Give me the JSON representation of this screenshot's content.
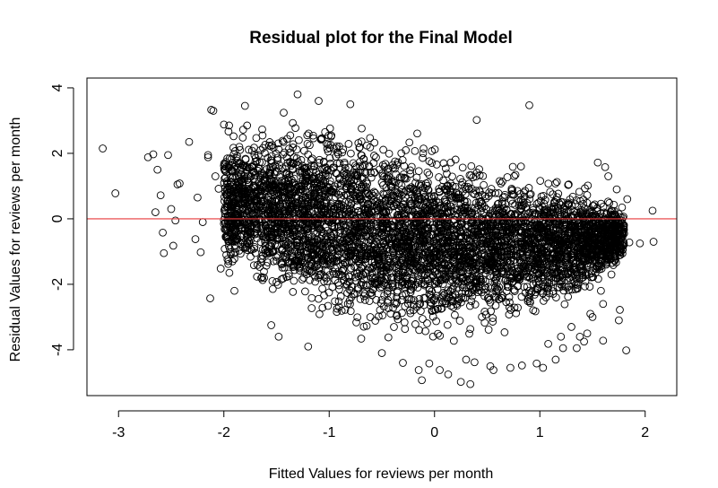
{
  "chart_data": {
    "type": "scatter",
    "title": "Residual plot for the Final Model",
    "xlabel": "Fitted Values for reviews per month",
    "ylabel": "Residual Values for reviews per month",
    "xlim": [
      -3.3,
      2.3
    ],
    "ylim": [
      -5.4,
      4.3
    ],
    "x_ticks": [
      -3,
      -2,
      -1,
      0,
      1,
      2
    ],
    "y_ticks": [
      -4,
      -2,
      0,
      2,
      4
    ],
    "x_tick_labels": [
      "-3",
      "-2",
      "-1",
      "0",
      "1",
      "2"
    ],
    "y_tick_labels": [
      "-4",
      "-2",
      "0",
      "2",
      "4"
    ],
    "grid": false,
    "marker": "open-circle",
    "reference_line": {
      "y": 0,
      "color": "#e8393b"
    },
    "dense_region": {
      "x_range": [
        -2.0,
        1.8
      ],
      "upper_residual_at_x": [
        [
          -2.0,
          2.7
        ],
        [
          -1.5,
          3.0
        ],
        [
          -1.0,
          3.1
        ],
        [
          -0.5,
          2.7
        ],
        [
          0.0,
          2.2
        ],
        [
          0.5,
          1.8
        ],
        [
          1.0,
          1.5
        ],
        [
          1.5,
          1.0
        ],
        [
          1.8,
          0.3
        ]
      ],
      "lower_residual_at_x": [
        [
          -2.0,
          -1.7
        ],
        [
          -1.5,
          -2.5
        ],
        [
          -1.0,
          -3.4
        ],
        [
          -0.5,
          -3.6
        ],
        [
          0.0,
          -3.7
        ],
        [
          0.5,
          -3.5
        ],
        [
          1.0,
          -3.0
        ],
        [
          1.5,
          -2.3
        ],
        [
          1.8,
          -1.3
        ]
      ]
    },
    "points": [
      [
        -3.15,
        2.15
      ],
      [
        -3.03,
        0.78
      ],
      [
        -2.72,
        1.88
      ],
      [
        -2.67,
        1.97
      ],
      [
        -2.65,
        0.2
      ],
      [
        -2.63,
        1.5
      ],
      [
        -2.6,
        0.72
      ],
      [
        -2.58,
        -0.42
      ],
      [
        -2.57,
        -1.05
      ],
      [
        -2.53,
        1.95
      ],
      [
        -2.5,
        0.3
      ],
      [
        -2.48,
        -0.82
      ],
      [
        -2.46,
        -0.05
      ],
      [
        -2.44,
        1.05
      ],
      [
        -2.42,
        1.08
      ],
      [
        -2.33,
        2.35
      ],
      [
        -2.27,
        -0.62
      ],
      [
        -2.25,
        0.65
      ],
      [
        -2.22,
        -1.02
      ],
      [
        -2.2,
        -0.1
      ],
      [
        -2.15,
        1.95
      ],
      [
        -2.15,
        1.88
      ],
      [
        -2.13,
        -2.43
      ],
      [
        -2.12,
        3.33
      ],
      [
        -2.1,
        3.3
      ],
      [
        -2.08,
        1.3
      ],
      [
        -2.05,
        0.92
      ],
      [
        -2.03,
        -1.52
      ],
      [
        -2.0,
        2.88
      ],
      [
        -1.95,
        2.85
      ],
      [
        -1.8,
        3.45
      ],
      [
        -1.9,
        -2.2
      ],
      [
        -1.55,
        -3.25
      ],
      [
        -1.48,
        -3.6
      ],
      [
        -1.3,
        3.8
      ],
      [
        -1.2,
        -3.9
      ],
      [
        -1.1,
        3.6
      ],
      [
        -0.8,
        3.5
      ],
      [
        -0.5,
        -4.1
      ],
      [
        -0.3,
        -4.4
      ],
      [
        -0.15,
        -4.62
      ],
      [
        -0.12,
        -4.93
      ],
      [
        -0.05,
        -4.42
      ],
      [
        0.05,
        -4.62
      ],
      [
        0.13,
        -4.75
      ],
      [
        0.25,
        -4.98
      ],
      [
        0.3,
        -4.3
      ],
      [
        0.34,
        -5.05
      ],
      [
        0.38,
        -4.38
      ],
      [
        0.4,
        3.02
      ],
      [
        0.53,
        -4.5
      ],
      [
        0.56,
        -4.62
      ],
      [
        0.72,
        -4.55
      ],
      [
        0.83,
        -4.48
      ],
      [
        0.9,
        3.47
      ],
      [
        0.97,
        -4.42
      ],
      [
        1.03,
        -4.55
      ],
      [
        1.08,
        -3.82
      ],
      [
        1.15,
        -4.3
      ],
      [
        1.22,
        -3.95
      ],
      [
        1.3,
        -3.3
      ],
      [
        1.38,
        -3.6
      ],
      [
        1.45,
        -3.5
      ],
      [
        1.5,
        -3.0
      ],
      [
        1.55,
        1.72
      ],
      [
        1.58,
        -2.2
      ],
      [
        1.6,
        -3.72
      ],
      [
        1.63,
        -1.4
      ],
      [
        1.65,
        1.3
      ],
      [
        1.68,
        -1.7
      ],
      [
        1.72,
        -1.05
      ],
      [
        1.73,
        0.9
      ],
      [
        1.75,
        -3.1
      ],
      [
        1.76,
        -2.78
      ],
      [
        1.78,
        0.35
      ],
      [
        1.8,
        -0.45
      ],
      [
        1.82,
        -4.02
      ],
      [
        1.83,
        0.6
      ],
      [
        1.85,
        -0.72
      ],
      [
        1.95,
        -0.75
      ],
      [
        2.07,
        0.25
      ],
      [
        2.08,
        -0.7
      ],
      [
        1.62,
        1.58
      ],
      [
        1.6,
        -2.6
      ],
      [
        1.48,
        -2.9
      ],
      [
        1.42,
        -3.75
      ],
      [
        1.35,
        -3.95
      ],
      [
        1.2,
        -3.6
      ]
    ]
  }
}
